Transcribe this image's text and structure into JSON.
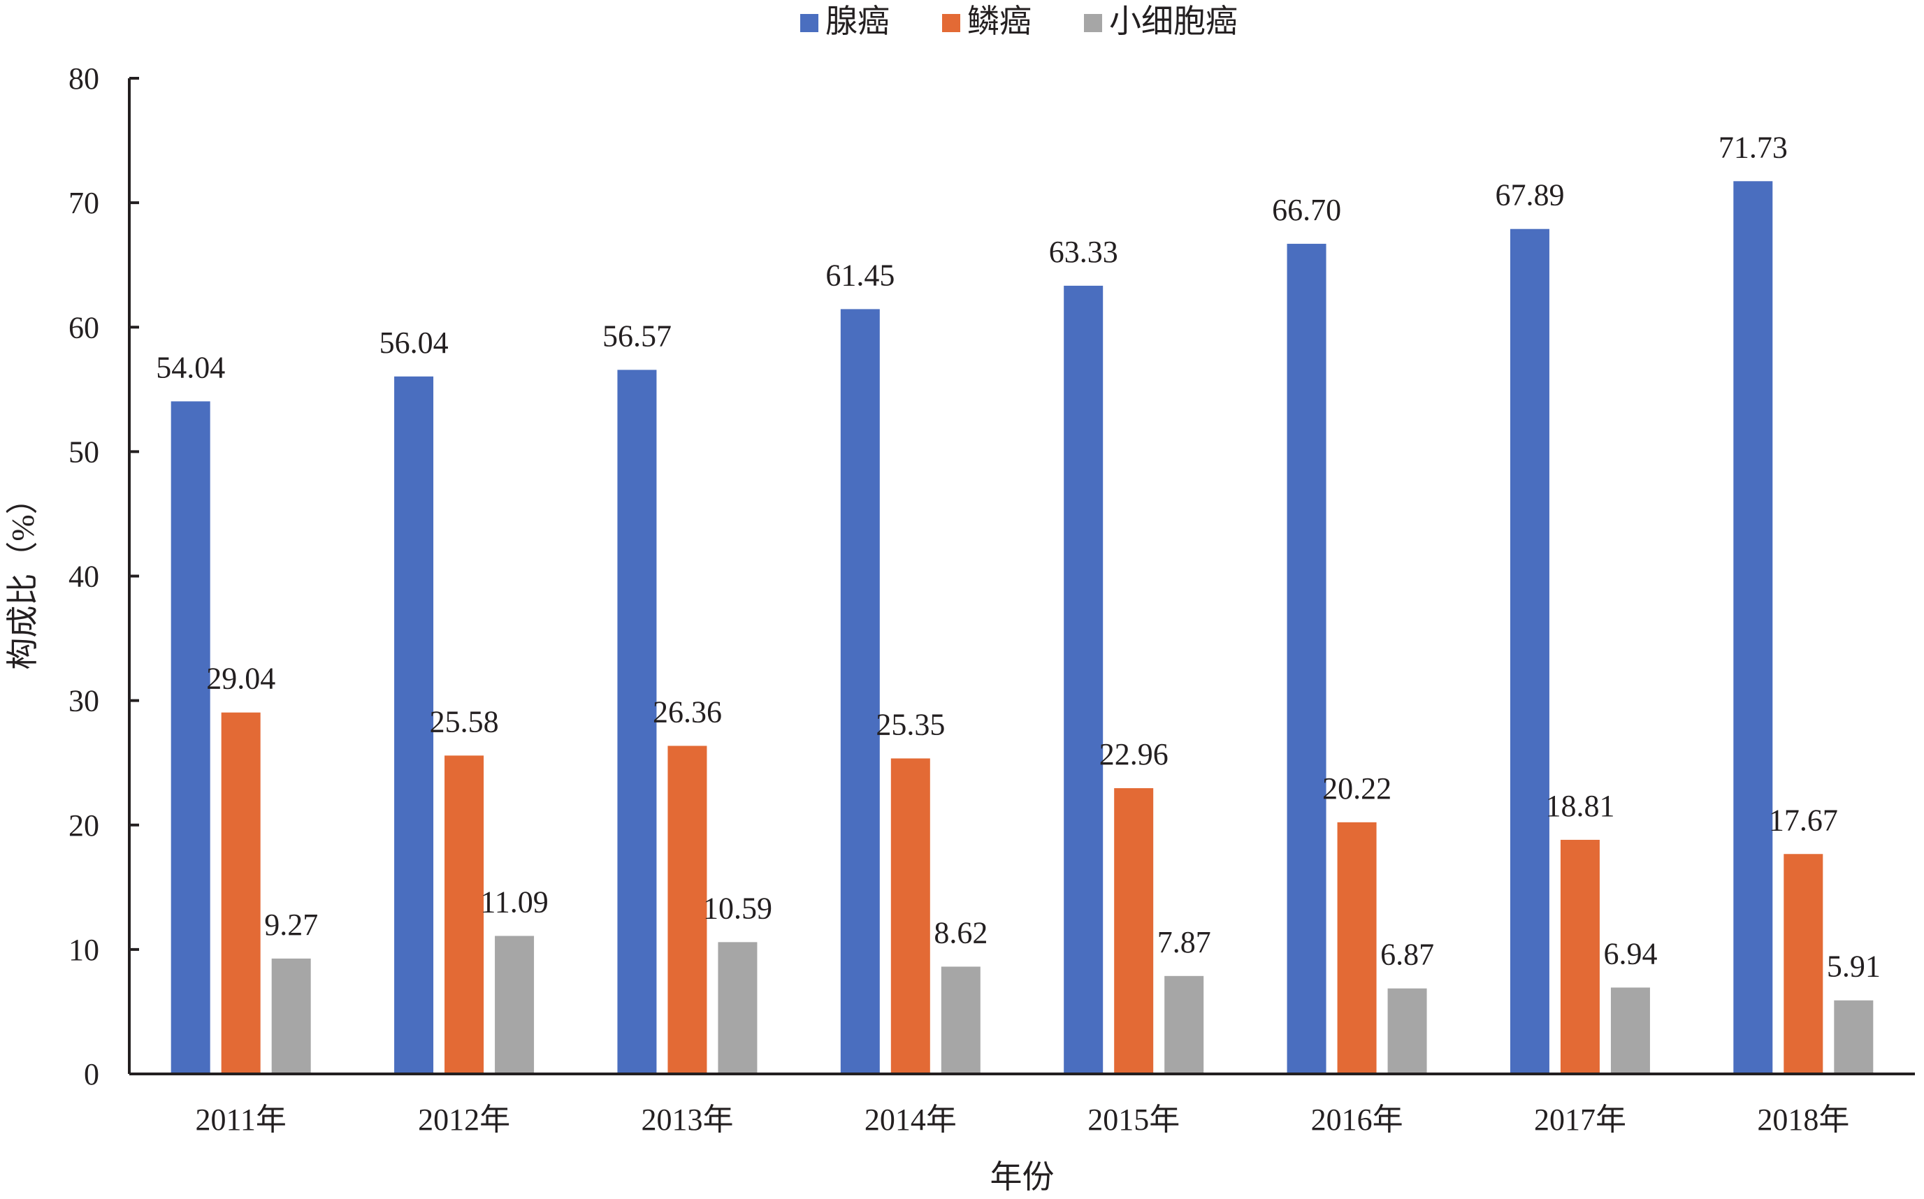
{
  "chart_data": {
    "type": "bar",
    "categories": [
      "2011年",
      "2012年",
      "2013年",
      "2014年",
      "2015年",
      "2016年",
      "2017年",
      "2018年"
    ],
    "series": [
      {
        "name": "腺癌",
        "color": "#4a6ebf",
        "values": [
          54.04,
          56.04,
          56.57,
          61.45,
          63.33,
          66.7,
          67.89,
          71.73
        ],
        "labels": [
          "54.04",
          "56.04",
          "56.57",
          "61.45",
          "63.33",
          "66.70",
          "67.89",
          "71.73"
        ]
      },
      {
        "name": "鳞癌",
        "color": "#e36a35",
        "values": [
          29.04,
          25.58,
          26.36,
          25.35,
          22.96,
          20.22,
          18.81,
          17.67
        ],
        "labels": [
          "29.04",
          "25.58",
          "26.36",
          "25.35",
          "22.96",
          "20.22",
          "18.81",
          "17.67"
        ]
      },
      {
        "name": "小细胞癌",
        "color": "#a6a6a6",
        "values": [
          9.27,
          11.09,
          10.59,
          8.62,
          7.87,
          6.87,
          6.94,
          5.91
        ],
        "labels": [
          "9.27",
          "11.09",
          "10.59",
          "8.62",
          "7.87",
          "6.87",
          "6.94",
          "5.91"
        ]
      }
    ],
    "xlabel": "年份",
    "ylabel": "构成比（%）",
    "ylim": [
      0,
      80
    ],
    "yticks": [
      0,
      10,
      20,
      30,
      40,
      50,
      60,
      70,
      80
    ],
    "legend": "top-center",
    "grid": false
  }
}
